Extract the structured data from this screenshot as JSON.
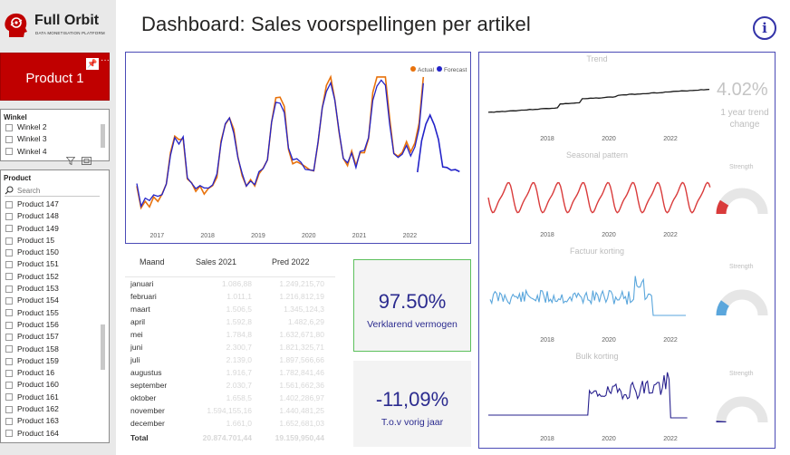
{
  "brand": {
    "name": "Full Orbit",
    "tagline": "DATA MONETISATION PLATFORM"
  },
  "header": {
    "title": "Dashboard: Sales voorspellingen per artikel",
    "info_glyph": "i"
  },
  "product_tile": {
    "label": "Product 1",
    "pin_icon": "pin-icon",
    "more_label": "···"
  },
  "winkel": {
    "title": "Winkel",
    "items": [
      "Winkel 2",
      "Winkel 3",
      "Winkel 4"
    ]
  },
  "product_slicer": {
    "title": "Product",
    "search_placeholder": "Search",
    "items": [
      "Product 147",
      "Product 148",
      "Product 149",
      "Product 15",
      "Product 150",
      "Product 151",
      "Product 152",
      "Product 153",
      "Product 154",
      "Product 155",
      "Product 156",
      "Product 157",
      "Product 158",
      "Product 159",
      "Product 16",
      "Product 160",
      "Product 161",
      "Product 162",
      "Product 163",
      "Product 164"
    ]
  },
  "colors": {
    "actual": "#e8720c",
    "forecast": "#2323c8",
    "trend": "#1a1a1a",
    "seasonal": "#d93b3b",
    "factuur": "#5aa6dc",
    "bulk": "#27208e",
    "accent": "#c00000",
    "frame": "#4b4bb6"
  },
  "main_chart": {
    "legend": {
      "actual": "Actual",
      "forecast": "Forecast"
    },
    "x_ticks": [
      "2017",
      "2018",
      "2019",
      "2020",
      "2021",
      "2022"
    ]
  },
  "table": {
    "headers": {
      "month": "Maand",
      "sales": "Sales 2021",
      "pred": "Pred 2022"
    },
    "rows": [
      {
        "month": "januari",
        "sales": "1.086,88",
        "pred": "1.249,215,70"
      },
      {
        "month": "februari",
        "sales": "1.011,1",
        "pred": "1.216,812,19"
      },
      {
        "month": "maart",
        "sales": "1.506,5",
        "pred": "1.345,124,3"
      },
      {
        "month": "april",
        "sales": "1.592,8",
        "pred": "1.482,6,29"
      },
      {
        "month": "mei",
        "sales": "1.784,8",
        "pred": "1.632,671,80"
      },
      {
        "month": "juni",
        "sales": "2.300,7",
        "pred": "1.821,325,71"
      },
      {
        "month": "juli",
        "sales": "2.139,0",
        "pred": "1.897,566,66"
      },
      {
        "month": "augustus",
        "sales": "1.916,7",
        "pred": "1.782,841,46"
      },
      {
        "month": "september",
        "sales": "2.030,7",
        "pred": "1.561,662,36"
      },
      {
        "month": "oktober",
        "sales": "1.658,5",
        "pred": "1.402,286,97"
      },
      {
        "month": "november",
        "sales": "1.594,155,16",
        "pred": "1.440,481,25"
      },
      {
        "month": "december",
        "sales": "1.661,0",
        "pred": "1.652,681,03"
      }
    ],
    "total": {
      "month": "Total",
      "sales": "20.874.701,44",
      "pred": "19.159,950,44"
    }
  },
  "cards": {
    "explained": {
      "value": "97.50%",
      "label": "Verklarend vermogen"
    },
    "yoy": {
      "value": "-11,09%",
      "label": "T.o.v vorig jaar"
    }
  },
  "trend": {
    "title": "Trend",
    "change_value": "4.02%",
    "change_label": "1 year trend change",
    "x_ticks": [
      "2018",
      "2020",
      "2022"
    ]
  },
  "seasonal": {
    "title": "Seasonal pattern",
    "strength_label": "Strength",
    "strength": 0.18,
    "x_ticks": [
      "2018",
      "2020",
      "2022"
    ]
  },
  "factuur": {
    "title": "Factuur korting",
    "strength_label": "Strength",
    "strength": 0.2,
    "x_ticks": [
      "2018",
      "2020",
      "2022"
    ]
  },
  "bulk": {
    "title": "Bulk korting",
    "strength_label": "Strength",
    "strength": 0.02,
    "x_ticks": [
      "2018",
      "2020",
      "2022"
    ]
  }
}
